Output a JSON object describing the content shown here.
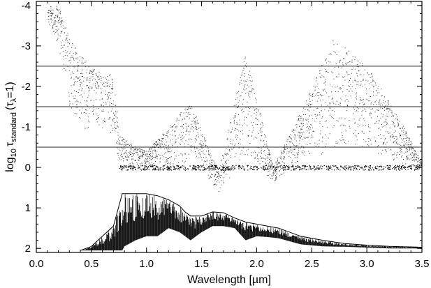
{
  "chart_data": {
    "type": "scatter",
    "xlabel": "Wavelength [µm]",
    "ylabel": {
      "prefix": "log",
      "log_base": "10",
      "tau": "τ",
      "tau_sub": "standard",
      "open": "(",
      "tau2": "τ",
      "tau2_sub": "λ",
      "rest": "=1)"
    },
    "xlim": [
      0.0,
      3.5
    ],
    "ylim": [
      2.1,
      -4.1
    ],
    "y_inverted": true,
    "grid": false,
    "x_ticks": [
      0.0,
      0.5,
      1.0,
      1.5,
      2.0,
      2.5,
      3.0,
      3.5
    ],
    "x_tick_labels": [
      "0.0",
      "0.5",
      "1.0",
      "1.5",
      "2.0",
      "2.5",
      "3.0",
      "3.5"
    ],
    "y_ticks": [
      -4,
      -3,
      -2,
      -1,
      0,
      1,
      2
    ],
    "y_tick_labels": [
      "-4",
      "-3",
      "-2",
      "-1",
      "0",
      "1",
      "2"
    ],
    "reference_lines_y": [
      -2.5,
      -1.5,
      -0.5
    ],
    "scatter_envelope": [
      {
        "x": 0.1,
        "y_min": -4.0,
        "y_max": -3.6
      },
      {
        "x": 0.2,
        "y_min": -4.0,
        "y_max": -3.0
      },
      {
        "x": 0.3,
        "y_min": -3.2,
        "y_max": -1.5
      },
      {
        "x": 0.4,
        "y_min": -2.8,
        "y_max": -0.9
      },
      {
        "x": 0.5,
        "y_min": -2.5,
        "y_max": -1.0
      },
      {
        "x": 0.6,
        "y_min": -2.3,
        "y_max": -0.9
      },
      {
        "x": 0.7,
        "y_min": -2.3,
        "y_max": -0.8
      },
      {
        "x": 0.75,
        "y_min": -0.8,
        "y_max": 0.0
      },
      {
        "x": 0.85,
        "y_min": -0.6,
        "y_max": 0.0
      },
      {
        "x": 1.0,
        "y_min": -0.4,
        "y_max": 0.0
      },
      {
        "x": 1.35,
        "y_min": -1.5,
        "y_max": 0.0
      },
      {
        "x": 1.4,
        "y_min": -1.6,
        "y_max": -0.3
      },
      {
        "x": 1.65,
        "y_min": 0.1,
        "y_max": 0.65
      },
      {
        "x": 1.9,
        "y_min": -2.8,
        "y_max": -0.3
      },
      {
        "x": 2.15,
        "y_min": 0.0,
        "y_max": 0.35
      },
      {
        "x": 2.4,
        "y_min": -1.4,
        "y_max": -0.2
      },
      {
        "x": 2.7,
        "y_min": -3.2,
        "y_max": -0.4
      },
      {
        "x": 3.0,
        "y_min": -2.5,
        "y_max": -0.4
      },
      {
        "x": 3.3,
        "y_min": -1.2,
        "y_max": -0.1
      },
      {
        "x": 3.5,
        "y_min": -0.1,
        "y_max": 0.0
      }
    ],
    "spectrum_envelope": [
      {
        "x": 0.4,
        "top": 2.05,
        "bottom": 2.05
      },
      {
        "x": 0.5,
        "top": 1.95,
        "bottom": 2.05
      },
      {
        "x": 0.6,
        "top": 1.7,
        "bottom": 2.05
      },
      {
        "x": 0.7,
        "top": 1.45,
        "bottom": 2.05
      },
      {
        "x": 0.78,
        "top": 0.65,
        "bottom": 2.05
      },
      {
        "x": 0.8,
        "top": 0.65,
        "bottom": 1.95
      },
      {
        "x": 0.9,
        "top": 0.65,
        "bottom": 1.8
      },
      {
        "x": 1.0,
        "top": 0.65,
        "bottom": 1.7
      },
      {
        "x": 1.1,
        "top": 0.7,
        "bottom": 1.7
      },
      {
        "x": 1.2,
        "top": 0.8,
        "bottom": 1.5
      },
      {
        "x": 1.3,
        "top": 0.95,
        "bottom": 1.6
      },
      {
        "x": 1.35,
        "top": 1.1,
        "bottom": 1.7
      },
      {
        "x": 1.4,
        "top": 1.2,
        "bottom": 1.8
      },
      {
        "x": 1.5,
        "top": 1.2,
        "bottom": 1.6
      },
      {
        "x": 1.6,
        "top": 1.1,
        "bottom": 1.45
      },
      {
        "x": 1.7,
        "top": 1.12,
        "bottom": 1.45
      },
      {
        "x": 1.8,
        "top": 1.25,
        "bottom": 1.5
      },
      {
        "x": 1.9,
        "top": 1.35,
        "bottom": 1.8
      },
      {
        "x": 2.0,
        "top": 1.4,
        "bottom": 1.7
      },
      {
        "x": 2.1,
        "top": 1.45,
        "bottom": 1.72
      },
      {
        "x": 2.2,
        "top": 1.5,
        "bottom": 1.75
      },
      {
        "x": 2.4,
        "top": 1.7,
        "bottom": 1.9
      },
      {
        "x": 2.6,
        "top": 1.8,
        "bottom": 1.95
      },
      {
        "x": 2.8,
        "top": 1.88,
        "bottom": 1.96
      },
      {
        "x": 3.0,
        "top": 1.92,
        "bottom": 1.98
      },
      {
        "x": 3.2,
        "top": 1.95,
        "bottom": 2.0
      },
      {
        "x": 3.5,
        "top": 1.97,
        "bottom": 2.0
      }
    ],
    "colors": {
      "points": "#333333",
      "spectrum": "#000000",
      "reference_lines": "#555555",
      "axes": "#000000"
    }
  }
}
